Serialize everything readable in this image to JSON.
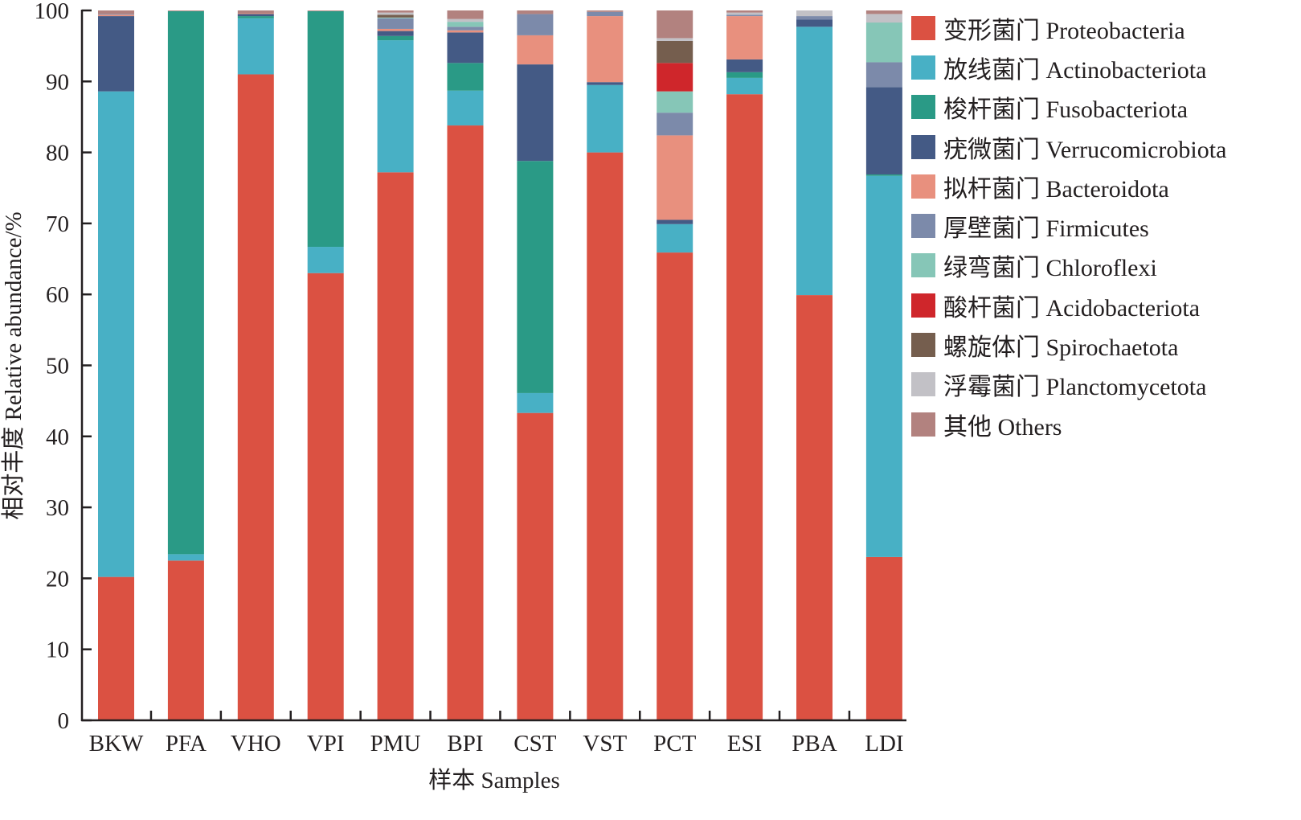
{
  "chart_data": {
    "type": "bar",
    "stacked": true,
    "title": "",
    "xlabel": "样本 Samples",
    "ylabel": "相对丰度 Relative abundance/%",
    "ylim": [
      0,
      100
    ],
    "yticks": [
      "0",
      "10",
      "20",
      "30",
      "40",
      "50",
      "60",
      "70",
      "80",
      "90",
      "100"
    ],
    "grid": false,
    "legend_position": "right",
    "categories": [
      "BKW",
      "PFA",
      "VHO",
      "VPI",
      "PMU",
      "BPI",
      "CST",
      "VST",
      "PCT",
      "ESI",
      "PBA",
      "LDI"
    ],
    "series": [
      {
        "name": "变形菌门 Proteobacteria",
        "color": "#db5142",
        "values": [
          20.2,
          22.5,
          91.0,
          63.0,
          77.2,
          83.8,
          43.3,
          80.0,
          65.9,
          88.2,
          59.9,
          23.0
        ]
      },
      {
        "name": "放线菌门 Actinobacteriota",
        "color": "#48b0c5",
        "values": [
          68.4,
          0.9,
          7.9,
          3.7,
          18.6,
          4.9,
          2.8,
          9.5,
          4.0,
          2.3,
          37.8,
          53.7
        ]
      },
      {
        "name": "梭杆菌门 Fusobacteriota",
        "color": "#2a9a86",
        "values": [
          0.0,
          76.5,
          0.3,
          33.2,
          0.6,
          3.9,
          32.7,
          0.0,
          0.0,
          0.8,
          0.0,
          0.2
        ]
      },
      {
        "name": "疣微菌门 Verrucomicrobiota",
        "color": "#445a85",
        "values": [
          10.6,
          0.0,
          0.3,
          0.0,
          0.7,
          4.3,
          13.6,
          0.4,
          0.6,
          1.8,
          1.0,
          12.3
        ]
      },
      {
        "name": "拟杆菌门 Bacteroidota",
        "color": "#e8907e",
        "values": [
          0.2,
          0.0,
          0.1,
          0.0,
          0.3,
          0.3,
          4.1,
          9.3,
          11.9,
          6.1,
          0.0,
          0.0
        ]
      },
      {
        "name": "厚壁菌门 Firmicutes",
        "color": "#7c8aaa",
        "values": [
          0.1,
          0.0,
          0.0,
          0.0,
          1.5,
          0.5,
          3.0,
          0.6,
          3.2,
          0.2,
          0.5,
          3.5
        ]
      },
      {
        "name": "绿弯菌门 Chloroflexi",
        "color": "#86c6b7",
        "values": [
          0.0,
          0.0,
          0.0,
          0.0,
          0.1,
          0.7,
          0.0,
          0.0,
          3.0,
          0.0,
          0.0,
          5.6
        ]
      },
      {
        "name": "酸杆菌门 Acidobacteriota",
        "color": "#cf262b",
        "values": [
          0.0,
          0.0,
          0.0,
          0.0,
          0.0,
          0.0,
          0.0,
          0.0,
          4.0,
          0.0,
          0.0,
          0.0
        ]
      },
      {
        "name": "螺旋体门 Spirochaetota",
        "color": "#755e4e",
        "values": [
          0.0,
          0.0,
          0.0,
          0.0,
          0.4,
          0.0,
          0.0,
          0.0,
          3.1,
          0.0,
          0.0,
          0.0
        ]
      },
      {
        "name": "浮霉菌门 Planctomycetota",
        "color": "#c2c1c6",
        "values": [
          0.0,
          0.0,
          0.0,
          0.0,
          0.3,
          0.4,
          0.0,
          0.0,
          0.4,
          0.3,
          0.8,
          1.2
        ]
      },
      {
        "name": "其他 Others",
        "color": "#b2827f",
        "values": [
          0.5,
          0.1,
          0.4,
          0.1,
          0.3,
          1.4,
          0.5,
          0.2,
          3.9,
          0.3,
          0.0,
          0.5
        ]
      }
    ]
  }
}
